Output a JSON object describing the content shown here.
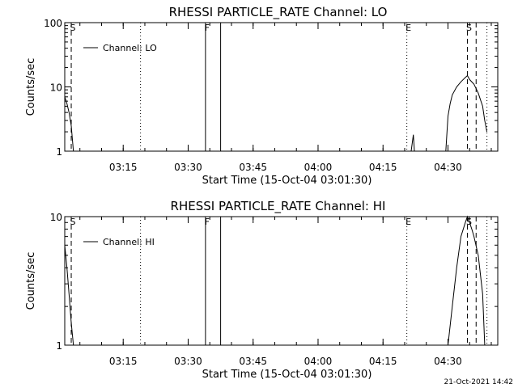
{
  "footer_date": "21-Oct-2021 14:42",
  "chart_data": [
    {
      "type": "line",
      "title": "RHESSI PARTICLE_RATE Channel: LO",
      "xlabel": "Start Time (15-Oct-04 03:01:30)",
      "ylabel": "Counts/sec",
      "yscale": "log",
      "xlim": [
        "03:01:30",
        "04:41:30"
      ],
      "ylim": [
        1,
        100
      ],
      "xticks": [
        "03:15",
        "03:30",
        "03:45",
        "04:00",
        "04:15",
        "04:30"
      ],
      "yticks": [
        {
          "value": 1,
          "label": "1"
        },
        {
          "value": 10,
          "label": "10"
        },
        {
          "value": 100,
          "label": "100"
        }
      ],
      "legend": {
        "position": "top-left",
        "label": "Channel: LO"
      },
      "markers": [
        {
          "time": "03:03:00",
          "label": "S",
          "style": "dashed"
        },
        {
          "time": "03:19:00",
          "label": "",
          "style": "dotted"
        },
        {
          "time": "03:34:00",
          "label": "F",
          "style": "solid"
        },
        {
          "time": "03:37:30",
          "label": "",
          "style": "solid"
        },
        {
          "time": "04:20:30",
          "label": "E",
          "style": "dotted"
        },
        {
          "time": "04:34:30",
          "label": "S",
          "style": "dashed"
        },
        {
          "time": "04:36:30",
          "label": "",
          "style": "dashed"
        },
        {
          "time": "04:39:00",
          "label": "",
          "style": "dotted"
        }
      ],
      "series": [
        {
          "points": [
            [
              "03:01:30",
              7
            ],
            [
              "03:02:00",
              5.5
            ],
            [
              "03:02:30",
              4
            ],
            [
              "03:03:00",
              2.5
            ],
            [
              "03:03:30",
              1
            ]
          ]
        },
        {
          "points": [
            [
              "04:21:30",
              1
            ],
            [
              "04:22:00",
              1.8
            ],
            [
              "04:22:15",
              1
            ]
          ]
        },
        {
          "points": [
            [
              "04:29:30",
              1
            ],
            [
              "04:30:00",
              3.5
            ],
            [
              "04:30:30",
              5.5
            ],
            [
              "04:31:00",
              7.5
            ],
            [
              "04:32:00",
              10
            ],
            [
              "04:33:00",
              12
            ],
            [
              "04:34:00",
              14
            ],
            [
              "04:34:30",
              15
            ],
            [
              "04:35:00",
              13
            ],
            [
              "04:36:00",
              11
            ],
            [
              "04:37:00",
              8
            ],
            [
              "04:38:00",
              5
            ],
            [
              "04:38:30",
              3
            ],
            [
              "04:39:00",
              2
            ]
          ]
        }
      ]
    },
    {
      "type": "line",
      "title": "RHESSI PARTICLE_RATE Channel: HI",
      "xlabel": "Start Time (15-Oct-04 03:01:30)",
      "ylabel": "Counts/sec",
      "yscale": "log",
      "xlim": [
        "03:01:30",
        "04:41:30"
      ],
      "ylim": [
        1,
        10
      ],
      "xticks": [
        "03:15",
        "03:30",
        "03:45",
        "04:00",
        "04:15",
        "04:30"
      ],
      "yticks": [
        {
          "value": 1,
          "label": "1"
        },
        {
          "value": 10,
          "label": "10"
        }
      ],
      "legend": {
        "position": "top-left",
        "label": "Channel: HI"
      },
      "markers": [
        {
          "time": "03:03:00",
          "label": "S",
          "style": "dashed"
        },
        {
          "time": "03:19:00",
          "label": "",
          "style": "dotted"
        },
        {
          "time": "03:34:00",
          "label": "F",
          "style": "solid"
        },
        {
          "time": "03:37:30",
          "label": "",
          "style": "solid"
        },
        {
          "time": "04:20:30",
          "label": "E",
          "style": "dotted"
        },
        {
          "time": "04:34:30",
          "label": "S",
          "style": "dashed"
        },
        {
          "time": "04:36:30",
          "label": "",
          "style": "dashed"
        },
        {
          "time": "04:39:00",
          "label": "",
          "style": "dotted"
        }
      ],
      "series": [
        {
          "points": [
            [
              "03:01:30",
              6
            ],
            [
              "03:02:00",
              4
            ],
            [
              "03:02:30",
              2.5
            ],
            [
              "03:03:00",
              1.5
            ],
            [
              "03:03:30",
              1
            ]
          ]
        },
        {
          "points": [
            [
              "04:30:00",
              1
            ],
            [
              "04:31:00",
              2
            ],
            [
              "04:32:00",
              4
            ],
            [
              "04:33:00",
              7
            ],
            [
              "04:34:00",
              9
            ],
            [
              "04:34:30",
              10
            ],
            [
              "04:35:00",
              9
            ],
            [
              "04:35:30",
              8
            ],
            [
              "04:36:00",
              7
            ],
            [
              "04:37:00",
              5
            ],
            [
              "04:38:00",
              2.5
            ],
            [
              "04:38:30",
              1
            ]
          ]
        }
      ]
    }
  ]
}
